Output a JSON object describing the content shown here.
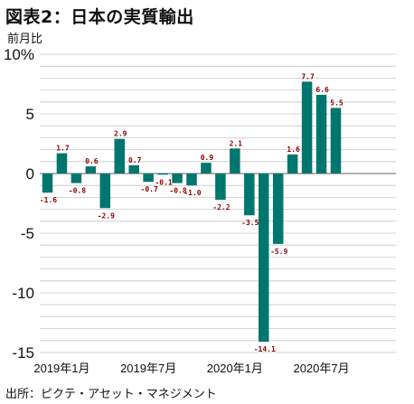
{
  "header": {
    "title": "図表2：日本の実質輸出",
    "unit_label": "前月比"
  },
  "footer": {
    "source": "出所：ピクテ・アセット・マネジメント"
  },
  "colors": {
    "bar": "#00766e",
    "grid": "#c8c8c8",
    "zero_line": "#808080",
    "value_label": "#8b0000"
  },
  "chart_data": {
    "type": "bar",
    "title": "図表2：日本の実質輸出",
    "ylabel": "前月比",
    "ylim": [
      -15,
      10
    ],
    "y_ticks": [
      10,
      5,
      0,
      -5,
      -10,
      -15
    ],
    "y_tick_labels": [
      "10%",
      "5",
      "0",
      "-5",
      "-10",
      "-15"
    ],
    "grid": true,
    "categories": [
      "2019-01",
      "2019-02",
      "2019-03",
      "2019-04",
      "2019-05",
      "2019-06",
      "2019-07",
      "2019-08",
      "2019-09",
      "2019-10",
      "2019-11",
      "2019-12",
      "2020-01",
      "2020-02",
      "2020-03",
      "2020-04",
      "2020-05",
      "2020-06",
      "2020-07",
      "2020-08",
      "2020-09"
    ],
    "values": [
      -1.6,
      1.7,
      -0.8,
      0.6,
      -2.9,
      2.9,
      0.7,
      -0.7,
      -0.1,
      -0.8,
      -1.0,
      0.9,
      -2.2,
      2.1,
      -3.5,
      -14.1,
      -5.9,
      1.6,
      7.7,
      6.6,
      5.5
    ],
    "value_labels": [
      "-1.6",
      "1.7",
      "-0.8",
      "0.6",
      "-2.9",
      "2.9",
      "0.7",
      "-0.7",
      "-0.1",
      "-0.8",
      "-1.0",
      "0.9",
      "-2.2",
      "2.1",
      "-3.5",
      "-14.1",
      "-5.9",
      "1.6",
      "7.7",
      "6.6",
      "5.5"
    ],
    "x_tick_labels": [
      {
        "index": 1,
        "label": "2019年1月"
      },
      {
        "index": 7,
        "label": "2019年7月"
      },
      {
        "index": 13,
        "label": "2020年1月"
      },
      {
        "index": 19,
        "label": "2020年7月"
      }
    ]
  }
}
